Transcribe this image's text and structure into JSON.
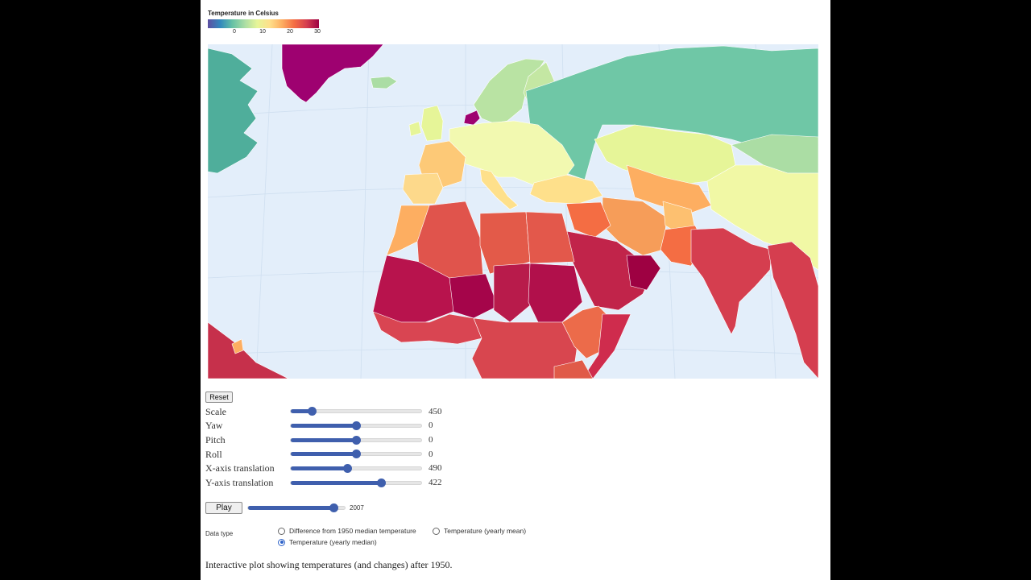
{
  "legend": {
    "title": "Temperature in Celsius",
    "ticks": [
      "0",
      "10",
      "20",
      "30"
    ]
  },
  "colors": {
    "ocean": "#e3eefa",
    "accent": "#3f5fad",
    "scale": [
      "#5e4fa2",
      "#3288bd",
      "#66c2a5",
      "#abdda4",
      "#e6f598",
      "#fee08b",
      "#fdae61",
      "#f46d43",
      "#d53e4f",
      "#9e0142"
    ]
  },
  "controls": {
    "reset_label": "Reset",
    "sliders": [
      {
        "label": "Scale",
        "value": "450",
        "level": 0.16
      },
      {
        "label": "Yaw",
        "value": "0",
        "level": 0.5
      },
      {
        "label": "Pitch",
        "value": "0",
        "level": 0.5
      },
      {
        "label": "Roll",
        "value": "0",
        "level": 0.5
      },
      {
        "label": "X-axis translation",
        "value": "490",
        "level": 0.43
      },
      {
        "label": "Y-axis translation",
        "value": "422",
        "level": 0.69
      }
    ]
  },
  "player": {
    "play_label": "Play",
    "year": "2007",
    "year_level": 0.88
  },
  "data_type": {
    "label": "Data type",
    "options": [
      {
        "label": "Difference from 1950 median temperature",
        "selected": false
      },
      {
        "label": "Temperature (yearly mean)",
        "selected": false
      },
      {
        "label": "Temperature (yearly median)",
        "selected": true
      }
    ]
  },
  "caption": "Interactive plot showing temperatures (and changes) after 1950."
}
